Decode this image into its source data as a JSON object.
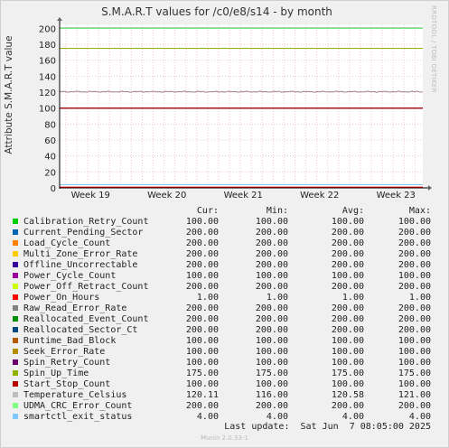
{
  "title": "S.M.A.R.T values for /c0/e8/s14 - by month",
  "side_label": "RRDTOOL / TOBI OETIKER",
  "footer": "Munin 2.0.33-1",
  "last_update": "Last update:  Sat Jun  7 08:05:00 2025",
  "colors": {
    "background": "#f0f0f0",
    "plot": "#ffffff",
    "grid_minor": "#f0c8c8",
    "axis": "#000000"
  },
  "headers": {
    "cur": "Cur:",
    "min": "Min:",
    "avg": "Avg:",
    "max": "Max:"
  },
  "chart_data": {
    "type": "line",
    "title": "S.M.A.R.T values for /c0/e8/s14 - by month",
    "ylabel": "Attribute S.M.A.R.T value",
    "xlabel": "",
    "ylim": [
      0,
      205
    ],
    "yticks": [
      0,
      20,
      40,
      60,
      80,
      100,
      120,
      140,
      160,
      180,
      200
    ],
    "xticks": [
      "Week 19",
      "Week 20",
      "Week 21",
      "Week 22",
      "Week 23"
    ],
    "grid": true,
    "legend_position": "bottom",
    "series": [
      {
        "name": "Calibration_Retry_Count",
        "color": "#00cc00",
        "cur": "100.00",
        "min": "100.00",
        "avg": "100.00",
        "max": "100.00",
        "value": 100
      },
      {
        "name": "Current_Pending_Sector",
        "color": "#0066b3",
        "cur": "200.00",
        "min": "200.00",
        "avg": "200.00",
        "max": "200.00",
        "value": 200
      },
      {
        "name": "Load_Cycle_Count",
        "color": "#ff8000",
        "cur": "200.00",
        "min": "200.00",
        "avg": "200.00",
        "max": "200.00",
        "value": 200
      },
      {
        "name": "Multi_Zone_Error_Rate",
        "color": "#ffcc00",
        "cur": "200.00",
        "min": "200.00",
        "avg": "200.00",
        "max": "200.00",
        "value": 200
      },
      {
        "name": "Offline_Uncorrectable",
        "color": "#330099",
        "cur": "200.00",
        "min": "200.00",
        "avg": "200.00",
        "max": "200.00",
        "value": 200
      },
      {
        "name": "Power_Cycle_Count",
        "color": "#990099",
        "cur": "100.00",
        "min": "100.00",
        "avg": "100.00",
        "max": "100.00",
        "value": 100
      },
      {
        "name": "Power_Off_Retract_Count",
        "color": "#ccff00",
        "cur": "200.00",
        "min": "200.00",
        "avg": "200.00",
        "max": "200.00",
        "value": 200
      },
      {
        "name": "Power_On_Hours",
        "color": "#ff0000",
        "cur": "1.00",
        "min": "1.00",
        "avg": "1.00",
        "max": "1.00",
        "value": 1
      },
      {
        "name": "Raw_Read_Error_Rate",
        "color": "#808080",
        "cur": "200.00",
        "min": "200.00",
        "avg": "200.00",
        "max": "200.00",
        "value": 200
      },
      {
        "name": "Reallocated_Event_Count",
        "color": "#008f00",
        "cur": "200.00",
        "min": "200.00",
        "avg": "200.00",
        "max": "200.00",
        "value": 200
      },
      {
        "name": "Reallocated_Sector_Ct",
        "color": "#00487d",
        "cur": "200.00",
        "min": "200.00",
        "avg": "200.00",
        "max": "200.00",
        "value": 200
      },
      {
        "name": "Runtime_Bad_Block",
        "color": "#b35a00",
        "cur": "100.00",
        "min": "100.00",
        "avg": "100.00",
        "max": "100.00",
        "value": 100
      },
      {
        "name": "Seek_Error_Rate",
        "color": "#b38f00",
        "cur": "100.00",
        "min": "100.00",
        "avg": "100.00",
        "max": "100.00",
        "value": 100
      },
      {
        "name": "Spin_Retry_Count",
        "color": "#6b006b",
        "cur": "100.00",
        "min": "100.00",
        "avg": "100.00",
        "max": "100.00",
        "value": 100
      },
      {
        "name": "Spin_Up_Time",
        "color": "#8fb300",
        "cur": "175.00",
        "min": "175.00",
        "avg": "175.00",
        "max": "175.00",
        "value": 175
      },
      {
        "name": "Start_Stop_Count",
        "color": "#b30000",
        "cur": "100.00",
        "min": "100.00",
        "avg": "100.00",
        "max": "100.00",
        "value": 100
      },
      {
        "name": "Temperature_Celsius",
        "color": "#bebebe",
        "cur": "120.11",
        "min": "116.00",
        "avg": "120.58",
        "max": "121.00",
        "value": 120.6
      },
      {
        "name": "UDMA_CRC_Error_Count",
        "color": "#80ff80",
        "cur": "200.00",
        "min": "200.00",
        "avg": "200.00",
        "max": "200.00",
        "value": 200
      },
      {
        "name": "smartctl_exit_status",
        "color": "#80c9ff",
        "cur": "4.00",
        "min": "4.00",
        "avg": "4.00",
        "max": "4.00",
        "value": 4
      }
    ]
  }
}
